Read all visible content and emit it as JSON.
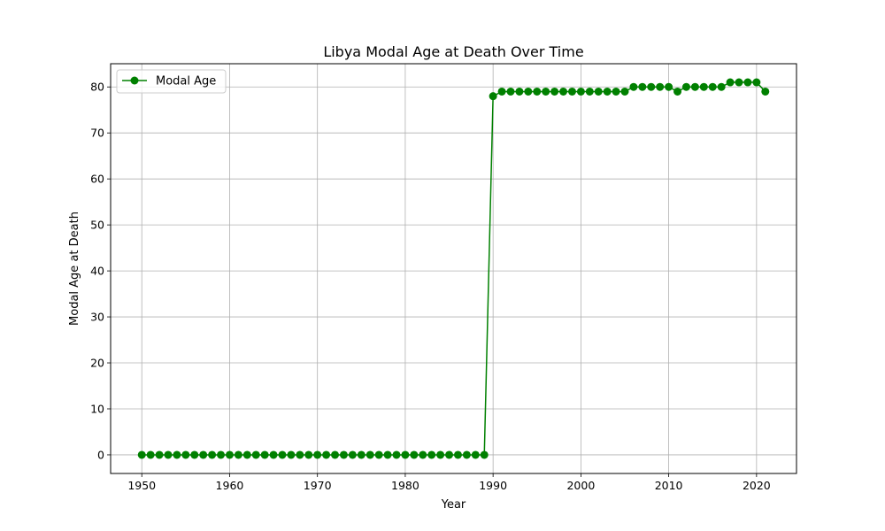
{
  "chart_data": {
    "type": "line",
    "title": "Libya Modal Age at Death Over Time",
    "xlabel": "Year",
    "ylabel": "Modal Age at Death",
    "xlim": [
      1946.45,
      2024.55
    ],
    "ylim": [
      -4.05,
      85.05
    ],
    "xticks": [
      1950,
      1960,
      1970,
      1980,
      1990,
      2000,
      2010,
      2020
    ],
    "yticks": [
      0,
      10,
      20,
      30,
      40,
      50,
      60,
      70,
      80
    ],
    "grid": true,
    "legend_position": "top-left",
    "series": [
      {
        "name": "Modal Age",
        "color": "#008000",
        "marker": "circle",
        "x": [
          1950,
          1951,
          1952,
          1953,
          1954,
          1955,
          1956,
          1957,
          1958,
          1959,
          1960,
          1961,
          1962,
          1963,
          1964,
          1965,
          1966,
          1967,
          1968,
          1969,
          1970,
          1971,
          1972,
          1973,
          1974,
          1975,
          1976,
          1977,
          1978,
          1979,
          1980,
          1981,
          1982,
          1983,
          1984,
          1985,
          1986,
          1987,
          1988,
          1989,
          1990,
          1991,
          1992,
          1993,
          1994,
          1995,
          1996,
          1997,
          1998,
          1999,
          2000,
          2001,
          2002,
          2003,
          2004,
          2005,
          2006,
          2007,
          2008,
          2009,
          2010,
          2011,
          2012,
          2013,
          2014,
          2015,
          2016,
          2017,
          2018,
          2019,
          2020,
          2021
        ],
        "values": [
          0,
          0,
          0,
          0,
          0,
          0,
          0,
          0,
          0,
          0,
          0,
          0,
          0,
          0,
          0,
          0,
          0,
          0,
          0,
          0,
          0,
          0,
          0,
          0,
          0,
          0,
          0,
          0,
          0,
          0,
          0,
          0,
          0,
          0,
          0,
          0,
          0,
          0,
          0,
          0,
          78,
          79,
          79,
          79,
          79,
          79,
          79,
          79,
          79,
          79,
          79,
          79,
          79,
          79,
          79,
          79,
          80,
          80,
          80,
          80,
          80,
          79,
          80,
          80,
          80,
          80,
          80,
          81,
          81,
          81,
          81,
          79
        ]
      }
    ]
  }
}
